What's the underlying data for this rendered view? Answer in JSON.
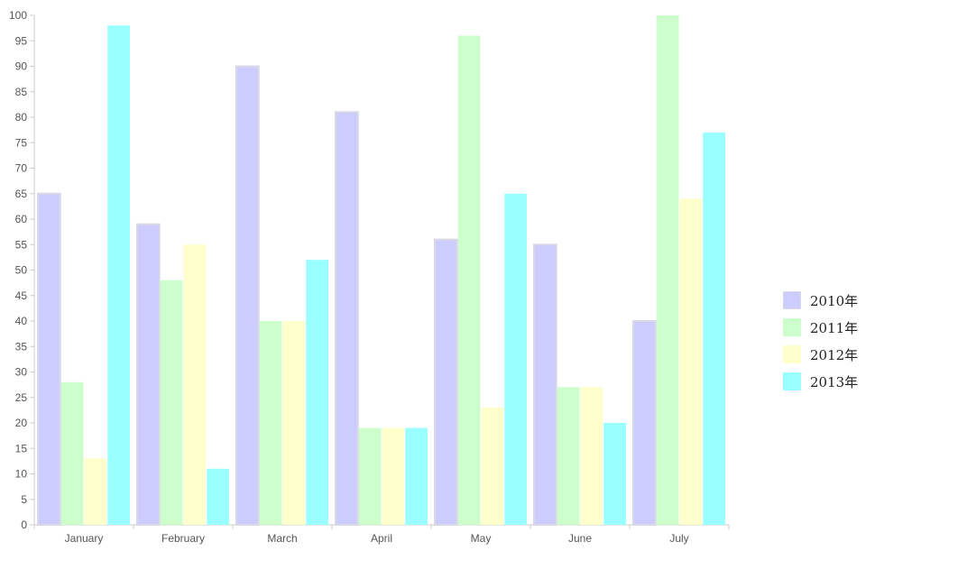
{
  "chart_data": {
    "type": "bar",
    "categories": [
      "January",
      "February",
      "March",
      "April",
      "May",
      "June",
      "July"
    ],
    "series": [
      {
        "name": "2010年",
        "color": "#ccccff",
        "values": [
          65,
          59,
          90,
          81,
          56,
          55,
          40
        ]
      },
      {
        "name": "2011年",
        "color": "#ccffcc",
        "values": [
          28,
          48,
          40,
          19,
          96,
          27,
          100
        ]
      },
      {
        "name": "2012年",
        "color": "#ffffcc",
        "values": [
          13,
          55,
          40,
          19,
          23,
          27,
          64
        ]
      },
      {
        "name": "2013年",
        "color": "#99ffff",
        "values": [
          98,
          11,
          52,
          19,
          65,
          20,
          77
        ]
      }
    ],
    "y_ticks": [
      "0",
      "5",
      "10",
      "15",
      "20",
      "25",
      "30",
      "35",
      "40",
      "45",
      "50",
      "55",
      "60",
      "65",
      "70",
      "75",
      "80",
      "85",
      "90",
      "95",
      "100"
    ],
    "ylim": [
      0,
      100
    ],
    "grid": false,
    "legend_position": "right"
  }
}
